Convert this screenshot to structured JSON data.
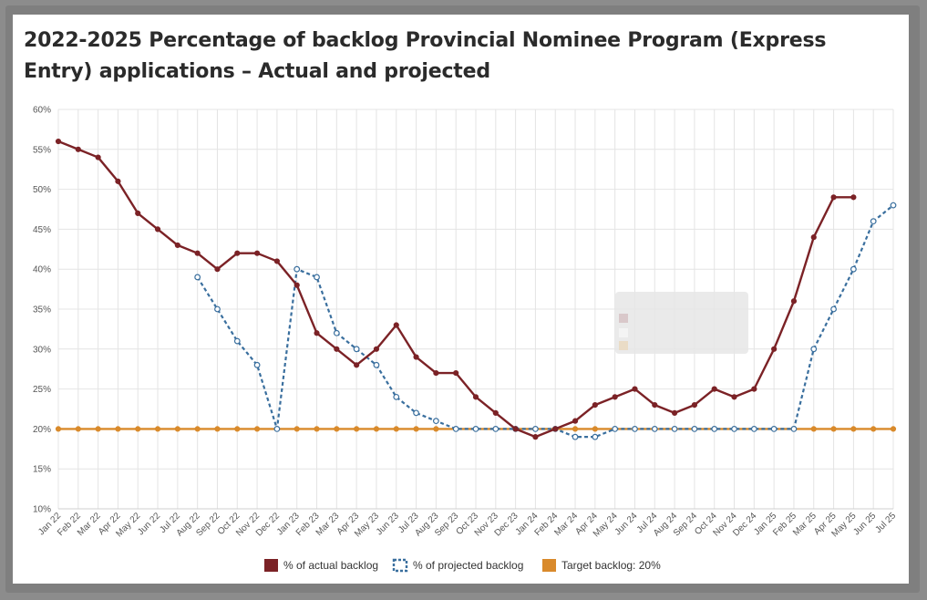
{
  "chart_data": {
    "type": "line",
    "title": "2022-2025 Percentage of backlog Provincial Nominee Program (Express Entry) applications – Actual and projected",
    "xlabel": "",
    "ylabel": "",
    "ylim": [
      10,
      60
    ],
    "yticks": [
      10,
      15,
      20,
      25,
      30,
      35,
      40,
      45,
      50,
      55,
      60
    ],
    "ytick_labels": [
      "10%",
      "15%",
      "20%",
      "25%",
      "30%",
      "35%",
      "40%",
      "45%",
      "50%",
      "55%",
      "60%"
    ],
    "categories": [
      "Jan 22",
      "Feb 22",
      "Mar 22",
      "Apr 22",
      "May 22",
      "Jun 22",
      "Jul 22",
      "Aug 22",
      "Sep 22",
      "Oct 22",
      "Nov 22",
      "Dec 22",
      "Jan 23",
      "Feb 23",
      "Mar 23",
      "Apr 23",
      "May 23",
      "Jun 23",
      "Jul 23",
      "Aug 23",
      "Sep 23",
      "Oct 23",
      "Nov 23",
      "Dec 23",
      "Jan 24",
      "Feb 24",
      "Mar 24",
      "Apr 24",
      "May 24",
      "Jun 24",
      "Jul 24",
      "Aug 24",
      "Sep 24",
      "Oct 24",
      "Nov 24",
      "Dec 24",
      "Jan 25",
      "Feb 25",
      "Mar 25",
      "Apr 25",
      "May 25",
      "Jun 25",
      "Jul 25"
    ],
    "grid": true,
    "legend_position": "bottom",
    "series": [
      {
        "name": "% of actual backlog",
        "color": "#7b2226",
        "style": "solid",
        "values": [
          56,
          55,
          54,
          51,
          47,
          45,
          43,
          42,
          40,
          42,
          42,
          41,
          38,
          32,
          30,
          28,
          30,
          33,
          29,
          27,
          27,
          24,
          22,
          20,
          19,
          20,
          21,
          23,
          24,
          25,
          23,
          22,
          23,
          25,
          24,
          25,
          30,
          36,
          44,
          49,
          49,
          null,
          null
        ]
      },
      {
        "name": "% of projected backlog",
        "color": "#3a6f9e",
        "style": "dashed",
        "values": [
          null,
          null,
          null,
          null,
          null,
          null,
          null,
          39,
          35,
          31,
          28,
          20,
          40,
          39,
          32,
          30,
          28,
          24,
          22,
          21,
          20,
          20,
          20,
          20,
          20,
          20,
          19,
          19,
          20,
          20,
          20,
          20,
          20,
          20,
          20,
          20,
          20,
          20,
          30,
          35,
          40,
          46,
          48
        ]
      },
      {
        "name": "Target backlog: 20%",
        "color": "#d98a2b",
        "style": "solid",
        "values": [
          20,
          20,
          20,
          20,
          20,
          20,
          20,
          20,
          20,
          20,
          20,
          20,
          20,
          20,
          20,
          20,
          20,
          20,
          20,
          20,
          20,
          20,
          20,
          20,
          20,
          20,
          20,
          20,
          20,
          20,
          20,
          20,
          20,
          20,
          20,
          20,
          20,
          20,
          20,
          20,
          20,
          20,
          20
        ]
      }
    ]
  }
}
